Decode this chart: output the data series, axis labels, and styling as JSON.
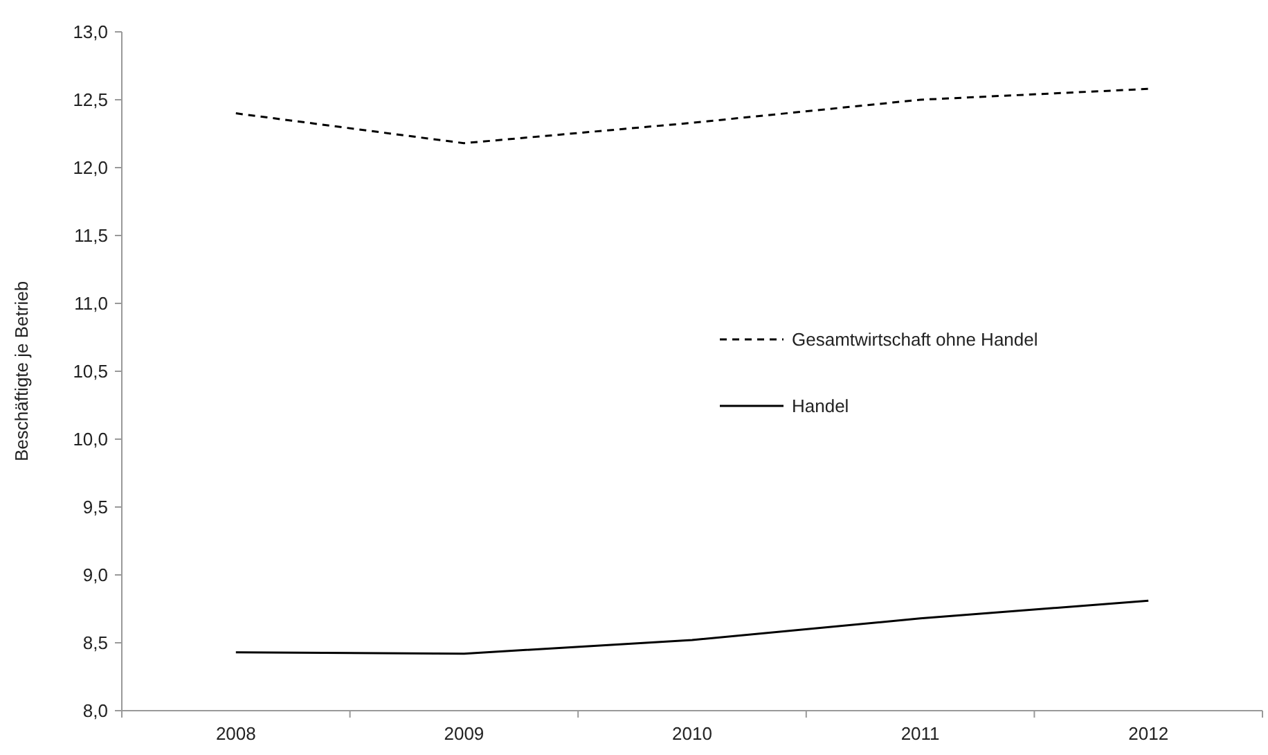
{
  "chart_data": {
    "type": "line",
    "ylabel": "Beschäftigte je Betrieb",
    "categories": [
      "2008",
      "2009",
      "2010",
      "2011",
      "2012"
    ],
    "series": [
      {
        "name": "Gesamtwirtschaft ohne Handel",
        "color": "#000000",
        "line_style": "dashed",
        "values": [
          12.4,
          12.18,
          12.33,
          12.5,
          12.58
        ]
      },
      {
        "name": "Handel",
        "color": "#000000",
        "line_style": "solid",
        "values": [
          8.43,
          8.42,
          8.52,
          8.68,
          8.81
        ]
      }
    ],
    "ylim": [
      8,
      13
    ],
    "yticks": [
      {
        "value": 8,
        "label": "8,0"
      },
      {
        "value": 8.5,
        "label": "8,5"
      },
      {
        "value": 9,
        "label": "9,0"
      },
      {
        "value": 9.5,
        "label": "9,5"
      },
      {
        "value": 10,
        "label": "10,0"
      },
      {
        "value": 10.5,
        "label": "10,5"
      },
      {
        "value": 11,
        "label": "11,0"
      },
      {
        "value": 11.5,
        "label": "11,5"
      },
      {
        "value": 12,
        "label": "12,0"
      },
      {
        "value": 12.5,
        "label": "12,5"
      },
      {
        "value": 13,
        "label": "13,0"
      }
    ],
    "grid": false,
    "legend": "right",
    "marker": "none"
  }
}
